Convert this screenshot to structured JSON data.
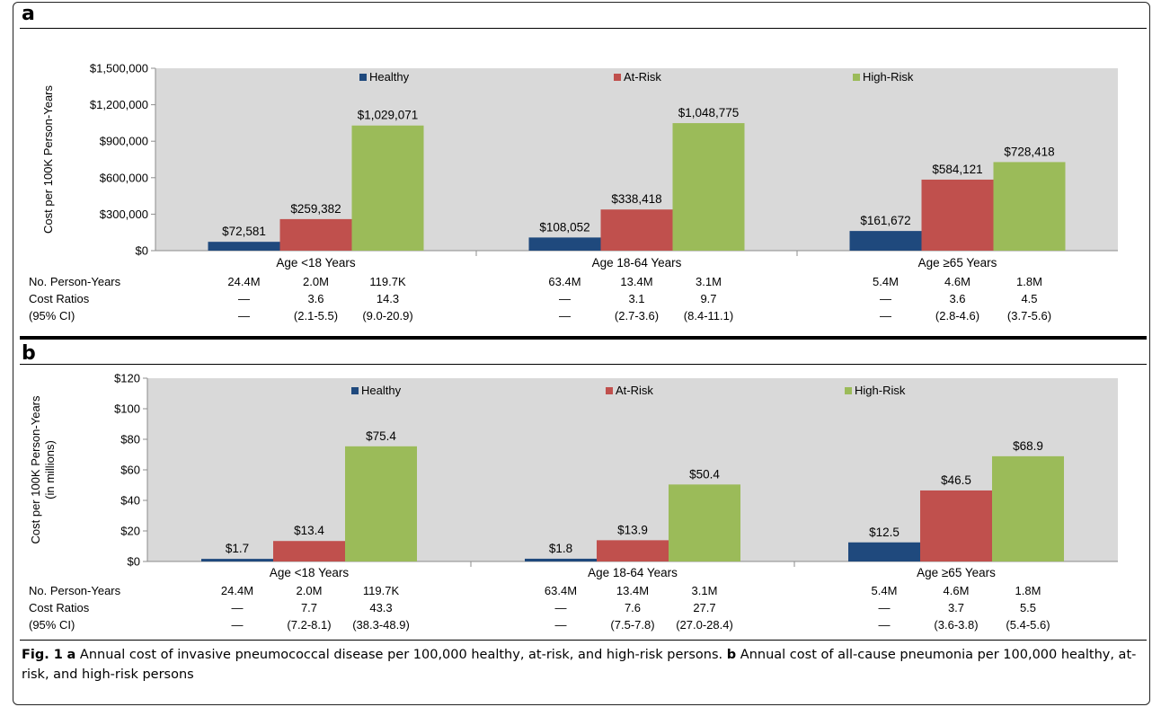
{
  "colors": {
    "healthy": "#1f497d",
    "at_risk": "#c0504d",
    "high_risk": "#9bbb59",
    "plot_bg": "#d9d9d9"
  },
  "chart_data": [
    {
      "panel": "a",
      "type": "bar",
      "ylabel": "Cost per 100K Person-Years",
      "ylim": [
        0,
        1500000
      ],
      "yticks": [
        0,
        300000,
        600000,
        900000,
        1200000,
        1500000
      ],
      "ytick_labels": [
        "$0",
        "$300,000",
        "$600,000",
        "$900,000",
        "$1,200,000",
        "$1,500,000"
      ],
      "categories": [
        "Age <18 Years",
        "Age 18-64 Years",
        "Age ≥65 Years"
      ],
      "series": [
        {
          "name": "Healthy",
          "values": [
            72581,
            108052,
            161672
          ],
          "labels": [
            "$72,581",
            "$108,052",
            "$161,672"
          ]
        },
        {
          "name": "At-Risk",
          "values": [
            259382,
            338418,
            584121
          ],
          "labels": [
            "$259,382",
            "$338,418",
            "$584,121"
          ]
        },
        {
          "name": "High-Risk",
          "values": [
            1029071,
            1048775,
            728418
          ],
          "labels": [
            "$1,029,071",
            "$1,048,775",
            "$728,418"
          ]
        }
      ],
      "grid": false,
      "legend": "top, horizontal",
      "table": {
        "rows": [
          {
            "label": "No. Person-Years",
            "cells": [
              "24.4M",
              "2.0M",
              "119.7K",
              "63.4M",
              "13.4M",
              "3.1M",
              "5.4M",
              "4.6M",
              "1.8M"
            ]
          },
          {
            "label": "Cost Ratios",
            "cells": [
              "—",
              "3.6",
              "14.3",
              "—",
              "3.1",
              "9.7",
              "—",
              "3.6",
              "4.5"
            ]
          },
          {
            "label": "(95% CI)",
            "cells": [
              "—",
              "(2.1-5.5)",
              "(9.0-20.9)",
              "—",
              "(2.7-3.6)",
              "(8.4-11.1)",
              "—",
              "(2.8-4.6)",
              "(3.7-5.6)"
            ]
          }
        ]
      }
    },
    {
      "panel": "b",
      "type": "bar",
      "ylabel": "Cost per 100K Person-Years (in millions)",
      "ylabel_lines": [
        "Cost per 100K Person-Years",
        "(in millions)"
      ],
      "ylim": [
        0,
        120
      ],
      "yticks": [
        0,
        20,
        40,
        60,
        80,
        100,
        120
      ],
      "ytick_labels": [
        "$0",
        "$20",
        "$40",
        "$60",
        "$80",
        "$100",
        "$120"
      ],
      "categories": [
        "Age <18 Years",
        "Age 18-64 Years",
        "Age ≥65 Years"
      ],
      "series": [
        {
          "name": "Healthy",
          "values": [
            1.7,
            1.8,
            12.5
          ],
          "labels": [
            "$1.7",
            "$1.8",
            "$12.5"
          ]
        },
        {
          "name": "At-Risk",
          "values": [
            13.4,
            13.9,
            46.5
          ],
          "labels": [
            "$13.4",
            "$13.9",
            "$46.5"
          ]
        },
        {
          "name": "High-Risk",
          "values": [
            75.4,
            50.4,
            68.9
          ],
          "labels": [
            "$75.4",
            "$50.4",
            "$68.9"
          ]
        }
      ],
      "grid": false,
      "legend": "top, horizontal",
      "table": {
        "rows": [
          {
            "label": "No. Person-Years",
            "cells": [
              "24.4M",
              "2.0M",
              "119.7K",
              "63.4M",
              "13.4M",
              "3.1M",
              "5.4M",
              "4.6M",
              "1.8M"
            ]
          },
          {
            "label": "Cost Ratios",
            "cells": [
              "—",
              "7.7",
              "43.3",
              "—",
              "7.6",
              "27.7",
              "—",
              "3.7",
              "5.5"
            ]
          },
          {
            "label": "(95% CI)",
            "cells": [
              "—",
              "(7.2-8.1)",
              "(38.3-48.9)",
              "—",
              "(7.5-7.8)",
              "(27.0-28.4)",
              "—",
              "(3.6-3.8)",
              "(5.4-5.6)"
            ]
          }
        ]
      }
    }
  ],
  "caption": {
    "fig_label": "Fig. 1",
    "a_label": "a",
    "a_text": "Annual cost of invasive pneumococcal disease per 100,000 healthy, at-risk, and high-risk persons.",
    "b_label": "b",
    "b_text": "Annual cost of all-cause pneumonia per 100,000 healthy, at-risk, and high-risk persons"
  }
}
